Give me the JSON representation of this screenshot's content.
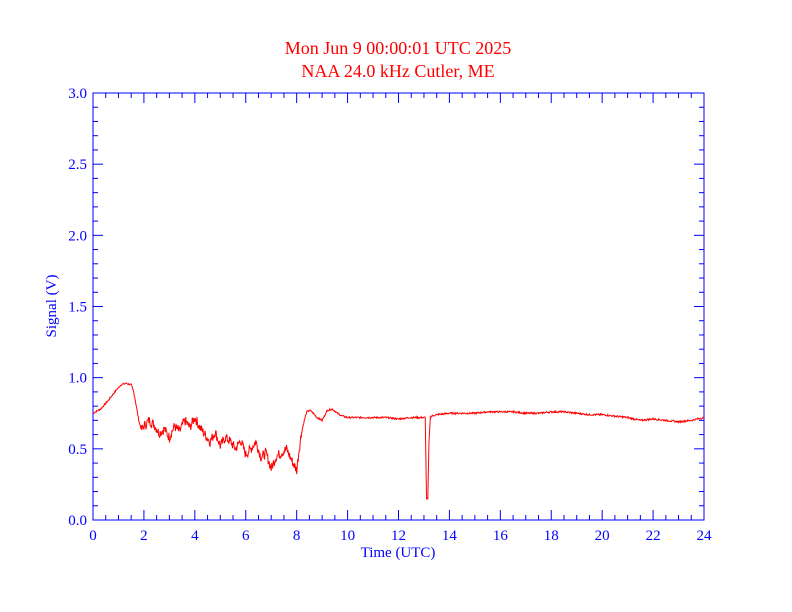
{
  "chart_data": {
    "type": "line",
    "title": "Mon Jun 9 00:00:01 UTC 2025",
    "subtitle": "NAA 24.0 kHz Cutler, ME",
    "xlabel": "Time (UTC)",
    "ylabel": "Signal (V)",
    "xlim": [
      0,
      24
    ],
    "ylim": [
      0.0,
      3.0
    ],
    "xticks": [
      0,
      2,
      4,
      6,
      8,
      10,
      12,
      14,
      16,
      18,
      20,
      22,
      24
    ],
    "yticks": [
      "0.0",
      "0.5",
      "1.0",
      "1.5",
      "2.0",
      "2.5",
      "3.0"
    ],
    "grid": false,
    "colors": {
      "axis": "#0000ff",
      "title": "#ff0000",
      "series": "#ff0000"
    },
    "series": [
      {
        "x": [
          0.0,
          0.3,
          0.6,
          0.9,
          1.1,
          1.3,
          1.5,
          1.6,
          1.7,
          1.8,
          1.9,
          2.0,
          2.2,
          2.4,
          2.6,
          2.8,
          3.0,
          3.2,
          3.4,
          3.6,
          3.8,
          4.0,
          4.2,
          4.4,
          4.6,
          4.8,
          5.0,
          5.2,
          5.4,
          5.6,
          5.8,
          6.0,
          6.2,
          6.4,
          6.6,
          6.8,
          7.0,
          7.2,
          7.4,
          7.6,
          7.8,
          8.0,
          8.1,
          8.2,
          8.3,
          8.4,
          8.5,
          8.6,
          8.8,
          9.0,
          9.2,
          9.4,
          9.6,
          9.8,
          10.0,
          10.5,
          11.0,
          11.5,
          12.0,
          12.5,
          13.0,
          13.05,
          13.1,
          13.15,
          13.2,
          13.25,
          13.3,
          13.5,
          14.0,
          14.5,
          15.0,
          15.5,
          16.0,
          16.5,
          17.0,
          17.5,
          18.0,
          18.5,
          19.0,
          19.5,
          20.0,
          20.5,
          21.0,
          21.5,
          22.0,
          22.5,
          23.0,
          23.5,
          24.0
        ],
        "y": [
          0.75,
          0.78,
          0.84,
          0.91,
          0.95,
          0.96,
          0.95,
          0.9,
          0.8,
          0.7,
          0.63,
          0.66,
          0.7,
          0.67,
          0.61,
          0.64,
          0.58,
          0.66,
          0.62,
          0.7,
          0.65,
          0.72,
          0.65,
          0.6,
          0.55,
          0.62,
          0.52,
          0.58,
          0.55,
          0.5,
          0.56,
          0.46,
          0.5,
          0.55,
          0.44,
          0.47,
          0.36,
          0.45,
          0.47,
          0.5,
          0.42,
          0.35,
          0.5,
          0.62,
          0.7,
          0.76,
          0.77,
          0.76,
          0.72,
          0.7,
          0.77,
          0.78,
          0.75,
          0.73,
          0.72,
          0.72,
          0.72,
          0.72,
          0.71,
          0.72,
          0.72,
          0.72,
          0.15,
          0.15,
          0.55,
          0.72,
          0.73,
          0.74,
          0.75,
          0.75,
          0.75,
          0.76,
          0.76,
          0.76,
          0.75,
          0.75,
          0.76,
          0.76,
          0.75,
          0.74,
          0.74,
          0.73,
          0.72,
          0.7,
          0.71,
          0.7,
          0.69,
          0.7,
          0.72
        ]
      }
    ]
  }
}
